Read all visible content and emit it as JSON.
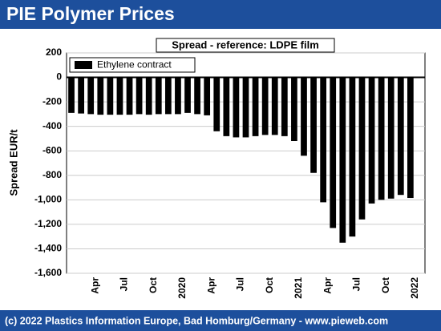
{
  "header": {
    "title": "PIE Polymer Prices"
  },
  "footer": {
    "text": "(c) 2022 Plastics Information Europe, Bad Homburg/Germany - www.pieweb.com"
  },
  "chart_data": {
    "type": "bar",
    "subtitle": "Spread - reference: LDPE film",
    "y_label": "Spread EUR/t",
    "categories": [
      null,
      null,
      null,
      "Apr",
      null,
      null,
      "Jul",
      null,
      null,
      "Oct",
      null,
      null,
      "2020",
      null,
      null,
      "Apr",
      null,
      null,
      "Jul",
      null,
      null,
      "Oct",
      null,
      null,
      "2021",
      null,
      null,
      "Apr",
      null,
      null,
      "Jul",
      null,
      null,
      "Oct",
      null,
      null,
      "2022"
    ],
    "series": [
      {
        "name": "Ethylene contract",
        "color": "#000000",
        "values": [
          -290,
          -295,
          -300,
          -305,
          -305,
          -305,
          -305,
          -300,
          -305,
          -300,
          -300,
          -300,
          -290,
          -300,
          -310,
          -440,
          -480,
          -490,
          -490,
          -480,
          -470,
          -470,
          -480,
          -520,
          -640,
          -780,
          -1020,
          -1230,
          -1350,
          -1300,
          -1160,
          -1030,
          -1000,
          -990,
          -960,
          -985,
          null
        ]
      }
    ],
    "ylim": [
      -1600,
      200
    ],
    "yticks": [
      200,
      0,
      -200,
      -400,
      -600,
      -800,
      {
        "value": -1000,
        "label": "-1,000"
      },
      {
        "value": -1200,
        "label": "-1,200"
      },
      {
        "value": -1400,
        "label": "-1,400"
      },
      {
        "value": -1600,
        "label": "-1,600"
      }
    ],
    "grid": true,
    "legend": "top-left"
  }
}
